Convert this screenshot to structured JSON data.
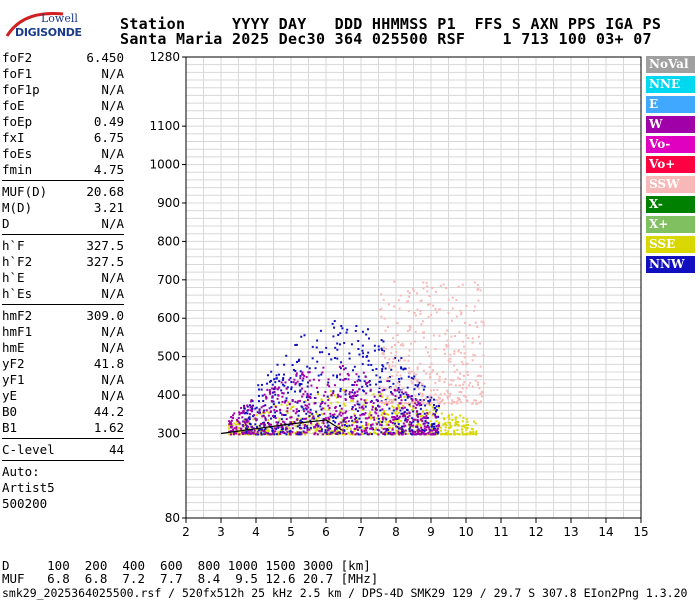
{
  "logo": {
    "line1": "Lowell",
    "line2": "DIGISONDE"
  },
  "header": {
    "line1": "Station     YYYY DAY   DDD HHMMSS P1  FFS S AXN PPS IGA PS",
    "line2": "Santa Maria 2025 Dec30 364 025500 RSF    1 713 100 03+ 07"
  },
  "params": {
    "group1": [
      {
        "name": "foF2",
        "value": "6.450"
      },
      {
        "name": "foF1",
        "value": "N/A"
      },
      {
        "name": "foF1p",
        "value": "N/A"
      },
      {
        "name": "foE",
        "value": "N/A"
      },
      {
        "name": "foEp",
        "value": "0.49"
      },
      {
        "name": "fxI",
        "value": "6.75"
      },
      {
        "name": "foEs",
        "value": "N/A"
      },
      {
        "name": "fmin",
        "value": "4.75"
      }
    ],
    "group2": [
      {
        "name": "MUF(D)",
        "value": "20.68"
      },
      {
        "name": "M(D)",
        "value": "3.21"
      },
      {
        "name": "D",
        "value": "N/A"
      }
    ],
    "group3": [
      {
        "name": "h`F",
        "value": "327.5"
      },
      {
        "name": "h`F2",
        "value": "327.5"
      },
      {
        "name": "h`E",
        "value": "N/A"
      },
      {
        "name": "h`Es",
        "value": "N/A"
      }
    ],
    "group4": [
      {
        "name": "hmF2",
        "value": "309.0"
      },
      {
        "name": "hmF1",
        "value": "N/A"
      },
      {
        "name": "hmE",
        "value": "N/A"
      },
      {
        "name": "yF2",
        "value": "41.8"
      },
      {
        "name": "yF1",
        "value": "N/A"
      },
      {
        "name": "yE",
        "value": "N/A"
      },
      {
        "name": "B0",
        "value": "44.2"
      },
      {
        "name": "B1",
        "value": "1.62"
      }
    ],
    "clevel": {
      "name": "C-level",
      "value": "44"
    },
    "auto": [
      "Auto:",
      "Artist5",
      "500200"
    ]
  },
  "legend": [
    {
      "label": "NoVal",
      "color": "#a0a0a0"
    },
    {
      "label": "NNE",
      "color": "#00d8f0"
    },
    {
      "label": "E",
      "color": "#40a8ff"
    },
    {
      "label": "W",
      "color": "#a000a8"
    },
    {
      "label": "Vo-",
      "color": "#e000c0"
    },
    {
      "label": "Vo+",
      "color": "#ff0040"
    },
    {
      "label": "SSW",
      "color": "#f8b8b8"
    },
    {
      "label": "X-",
      "color": "#008000"
    },
    {
      "label": "X+",
      "color": "#80c060"
    },
    {
      "label": "SSE",
      "color": "#d8d800"
    },
    {
      "label": "NNW",
      "color": "#1010c0"
    }
  ],
  "chart_data": {
    "type": "scatter",
    "xlim": [
      2,
      15
    ],
    "ylim": [
      80,
      1280
    ],
    "x_ticks": [
      "2",
      "3",
      "4",
      "5",
      "6",
      "7",
      "8",
      "9",
      "10",
      "11",
      "12",
      "13",
      "14",
      "15"
    ],
    "y_ticks": [
      "80",
      "300",
      "400",
      "500",
      "600",
      "700",
      "800",
      "900",
      "1000",
      "1100",
      "1280"
    ],
    "grid": true,
    "trace_profile": [
      [
        3.0,
        300
      ],
      [
        5.0,
        325
      ],
      [
        6.0,
        335
      ],
      [
        6.45,
        309
      ]
    ],
    "echo_regions": [
      {
        "color": "SSE",
        "x": [
          3.2,
          10.3
        ],
        "y": [
          300,
          420
        ]
      },
      {
        "color": "NNW",
        "x": [
          3.6,
          9.2
        ],
        "y": [
          300,
          600
        ]
      },
      {
        "color": "SSW",
        "x": [
          7.5,
          10.5
        ],
        "y": [
          380,
          700
        ]
      },
      {
        "color": "W",
        "x": [
          3.2,
          9.2
        ],
        "y": [
          300,
          480
        ]
      }
    ]
  },
  "bottom": {
    "d_row": "D     100  200  400  600  800 1000 1500 3000 [km]",
    "muf_row": "MUF   6.8  6.8  7.2  7.7  8.4  9.5 12.6 20.7 [MHz]",
    "footer": "smk29_2025364025500.rsf / 520fx512h 25 kHz 2.5 km / DPS-4D SMK29 129 / 29.7 S 307.8 EIon2Png 1.3.20"
  }
}
